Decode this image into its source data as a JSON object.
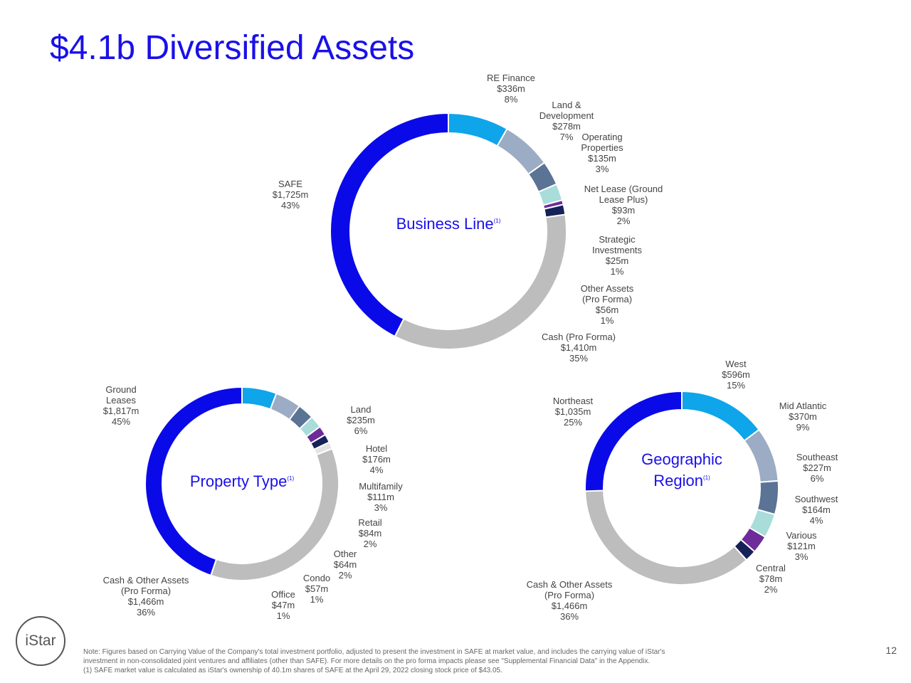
{
  "page": {
    "title": "$4.1b Diversified Assets",
    "note_line1": "Note: Figures based on Carrying Value of the Company's total investment portfolio, adjusted to present the investment in SAFE at market value, and includes the carrying value of iStar's",
    "note_line2": "investment in non-consolidated joint ventures and affiliates (other than SAFE). For more details on the pro forma impacts please see \"Supplemental Financial Data\" in the Appendix.",
    "note_line3": "(1) SAFE market value is calculated as iStar's ownership of 40.1m shares of SAFE at the April 29, 2022 closing stock price of $43.05.",
    "page_number": "12",
    "logo_text": "iStar"
  },
  "chart_data": [
    {
      "type": "pie",
      "center_lines": [
        "Business Line"
      ],
      "center_sup": "(1)",
      "slices": [
        {
          "label": [
            "RE Finance"
          ],
          "value": 336,
          "value_text": "$336m",
          "pct": "8%",
          "color": "#0ea5ea"
        },
        {
          "label": [
            "Land &",
            "Development"
          ],
          "value": 278,
          "value_text": "$278m",
          "pct": "7%",
          "color": "#9bacc4"
        },
        {
          "label": [
            "Operating",
            "Properties"
          ],
          "value": 135,
          "value_text": "$135m",
          "pct": "3%",
          "color": "#5b7394"
        },
        {
          "label": [
            "Net Lease (Ground",
            "Lease Plus)"
          ],
          "value": 93,
          "value_text": "$93m",
          "pct": "2%",
          "color": "#a8ddd9"
        },
        {
          "label": [
            "Strategic",
            "Investments"
          ],
          "value": 25,
          "value_text": "$25m",
          "pct": "1%",
          "color": "#6e2b9a"
        },
        {
          "label": [
            "Other Assets",
            "(Pro Forma)"
          ],
          "value": 56,
          "value_text": "$56m",
          "pct": "1%",
          "color": "#152158"
        },
        {
          "label": [
            "Cash (Pro Forma)"
          ],
          "value": 1410,
          "value_text": "$1,410m",
          "pct": "35%",
          "color": "#bdbdbd"
        },
        {
          "label": [
            "SAFE"
          ],
          "value": 1725,
          "value_text": "$1,725m",
          "pct": "43%",
          "color": "#0a0ae8"
        }
      ]
    },
    {
      "type": "pie",
      "center_lines": [
        "Property Type"
      ],
      "center_sup": "(1)",
      "slices": [
        {
          "label": [
            "Land"
          ],
          "value": 235,
          "value_text": "$235m",
          "pct": "6%",
          "color": "#0ea5ea"
        },
        {
          "label": [
            "Hotel"
          ],
          "value": 176,
          "value_text": "$176m",
          "pct": "4%",
          "color": "#9bacc4"
        },
        {
          "label": [
            "Multifamily"
          ],
          "value": 111,
          "value_text": "$111m",
          "pct": "3%",
          "color": "#5b7394"
        },
        {
          "label": [
            "Retail"
          ],
          "value": 84,
          "value_text": "$84m",
          "pct": "2%",
          "color": "#a8ddd9"
        },
        {
          "label": [
            "Other"
          ],
          "value": 64,
          "value_text": "$64m",
          "pct": "2%",
          "color": "#6e2b9a"
        },
        {
          "label": [
            "Condo"
          ],
          "value": 57,
          "value_text": "$57m",
          "pct": "1%",
          "color": "#152158"
        },
        {
          "label": [
            "Office"
          ],
          "value": 47,
          "value_text": "$47m",
          "pct": "1%",
          "color": "#e3e3e3"
        },
        {
          "label": [
            "Cash & Other Assets",
            "(Pro Forma)"
          ],
          "value": 1466,
          "value_text": "$1,466m",
          "pct": "36%",
          "color": "#bdbdbd"
        },
        {
          "label": [
            "Ground",
            "Leases"
          ],
          "value": 1817,
          "value_text": "$1,817m",
          "pct": "45%",
          "color": "#0a0ae8"
        }
      ]
    },
    {
      "type": "pie",
      "center_lines": [
        "Geographic",
        "Region"
      ],
      "center_sup": "(1)",
      "slices": [
        {
          "label": [
            "West"
          ],
          "value": 596,
          "value_text": "$596m",
          "pct": "15%",
          "color": "#0ea5ea"
        },
        {
          "label": [
            "Mid Atlantic"
          ],
          "value": 370,
          "value_text": "$370m",
          "pct": "9%",
          "color": "#9bacc4"
        },
        {
          "label": [
            "Southeast"
          ],
          "value": 227,
          "value_text": "$227m",
          "pct": "6%",
          "color": "#5b7394"
        },
        {
          "label": [
            "Southwest"
          ],
          "value": 164,
          "value_text": "$164m",
          "pct": "4%",
          "color": "#a8ddd9"
        },
        {
          "label": [
            "Various"
          ],
          "value": 121,
          "value_text": "$121m",
          "pct": "3%",
          "color": "#6e2b9a"
        },
        {
          "label": [
            "Central"
          ],
          "value": 78,
          "value_text": "$78m",
          "pct": "2%",
          "color": "#152158"
        },
        {
          "label": [
            "Cash & Other Assets",
            "(Pro Forma)"
          ],
          "value": 1466,
          "value_text": "$1,466m",
          "pct": "36%",
          "color": "#bdbdbd"
        },
        {
          "label": [
            "Northeast"
          ],
          "value": 1035,
          "value_text": "$1,035m",
          "pct": "25%",
          "color": "#0a0ae8"
        }
      ]
    }
  ]
}
